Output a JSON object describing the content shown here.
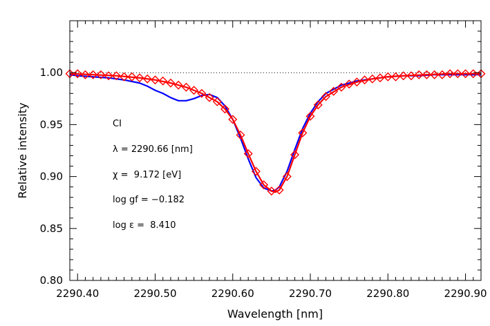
{
  "chart_data": {
    "type": "line",
    "xlabel": "Wavelength [nm]",
    "ylabel": "Relative intensity",
    "xlim": [
      2290.39,
      2290.92
    ],
    "ylim": [
      0.8,
      1.05
    ],
    "x_ticks": [
      2290.4,
      2290.5,
      2290.6,
      2290.7,
      2290.8,
      2290.9
    ],
    "x_tick_labels": [
      "2290.40",
      "2290.50",
      "2290.60",
      "2290.70",
      "2290.80",
      "2290.90"
    ],
    "y_ticks": [
      0.8,
      0.85,
      0.9,
      0.95,
      1.0
    ],
    "y_tick_labels": [
      "0.80",
      "0.85",
      "0.90",
      "0.95",
      "1.00"
    ],
    "reference_line": {
      "y": 1.0,
      "style": "dotted"
    },
    "colors": {
      "observed": "#0000ff",
      "synthetic": "#ff0000",
      "axes": "#000000"
    },
    "series": [
      {
        "style": "line",
        "color": "#0000ff",
        "x": [
          2290.39,
          2290.4,
          2290.42,
          2290.44,
          2290.46,
          2290.48,
          2290.49,
          2290.5,
          2290.51,
          2290.52,
          2290.53,
          2290.54,
          2290.55,
          2290.56,
          2290.57,
          2290.58,
          2290.59,
          2290.6,
          2290.61,
          2290.62,
          2290.63,
          2290.64,
          2290.65,
          2290.655,
          2290.66,
          2290.67,
          2290.68,
          2290.69,
          2290.7,
          2290.71,
          2290.72,
          2290.74,
          2290.76,
          2290.78,
          2290.8,
          2290.82,
          2290.84,
          2290.86,
          2290.88,
          2290.9,
          2290.92
        ],
        "y": [
          0.998,
          0.997,
          0.996,
          0.995,
          0.993,
          0.99,
          0.987,
          0.983,
          0.98,
          0.976,
          0.973,
          0.973,
          0.975,
          0.978,
          0.979,
          0.976,
          0.968,
          0.955,
          0.937,
          0.917,
          0.899,
          0.889,
          0.886,
          0.887,
          0.89,
          0.905,
          0.926,
          0.946,
          0.961,
          0.972,
          0.98,
          0.988,
          0.992,
          0.994,
          0.996,
          0.997,
          0.997,
          0.998,
          0.998,
          0.998,
          0.998
        ]
      },
      {
        "style": "line",
        "color": "#ff0000",
        "x": [
          2290.39,
          2290.42,
          2290.45,
          2290.48,
          2290.5,
          2290.52,
          2290.54,
          2290.56,
          2290.58,
          2290.59,
          2290.6,
          2290.61,
          2290.62,
          2290.63,
          2290.64,
          2290.65,
          2290.655,
          2290.66,
          2290.67,
          2290.68,
          2290.69,
          2290.7,
          2290.71,
          2290.72,
          2290.74,
          2290.76,
          2290.78,
          2290.8,
          2290.82,
          2290.85,
          2290.88,
          2290.92
        ],
        "y": [
          0.999,
          0.998,
          0.997,
          0.995,
          0.993,
          0.99,
          0.986,
          0.98,
          0.972,
          0.965,
          0.955,
          0.94,
          0.922,
          0.905,
          0.892,
          0.886,
          0.885,
          0.887,
          0.9,
          0.921,
          0.942,
          0.958,
          0.969,
          0.977,
          0.986,
          0.991,
          0.994,
          0.996,
          0.997,
          0.998,
          0.999,
          0.999
        ]
      },
      {
        "style": "diamond-markers",
        "color": "#ff0000",
        "x": [
          2290.39,
          2290.4,
          2290.41,
          2290.42,
          2290.43,
          2290.44,
          2290.45,
          2290.46,
          2290.47,
          2290.48,
          2290.49,
          2290.5,
          2290.51,
          2290.52,
          2290.53,
          2290.54,
          2290.55,
          2290.56,
          2290.57,
          2290.58,
          2290.59,
          2290.6,
          2290.61,
          2290.62,
          2290.63,
          2290.64,
          2290.65,
          2290.66,
          2290.67,
          2290.68,
          2290.69,
          2290.7,
          2290.71,
          2290.72,
          2290.73,
          2290.74,
          2290.75,
          2290.76,
          2290.77,
          2290.78,
          2290.79,
          2290.8,
          2290.81,
          2290.82,
          2290.83,
          2290.84,
          2290.85,
          2290.86,
          2290.87,
          2290.88,
          2290.89,
          2290.9,
          2290.91,
          2290.92
        ],
        "y": [
          0.999,
          0.999,
          0.998,
          0.998,
          0.998,
          0.997,
          0.997,
          0.996,
          0.996,
          0.995,
          0.994,
          0.993,
          0.992,
          0.99,
          0.988,
          0.986,
          0.983,
          0.98,
          0.976,
          0.972,
          0.965,
          0.955,
          0.94,
          0.922,
          0.905,
          0.892,
          0.886,
          0.887,
          0.9,
          0.921,
          0.942,
          0.958,
          0.969,
          0.977,
          0.982,
          0.986,
          0.989,
          0.991,
          0.993,
          0.994,
          0.995,
          0.996,
          0.996,
          0.997,
          0.997,
          0.998,
          0.998,
          0.998,
          0.998,
          0.999,
          0.999,
          0.999,
          0.999,
          0.999
        ]
      }
    ],
    "annotations": [
      {
        "text": "CI"
      },
      {
        "text": "λ = 2290.66 [nm]"
      },
      {
        "text": "χ =  9.172 [eV]"
      },
      {
        "text": "log gf = −0.182"
      },
      {
        "text": "log ε =  8.410"
      }
    ]
  }
}
